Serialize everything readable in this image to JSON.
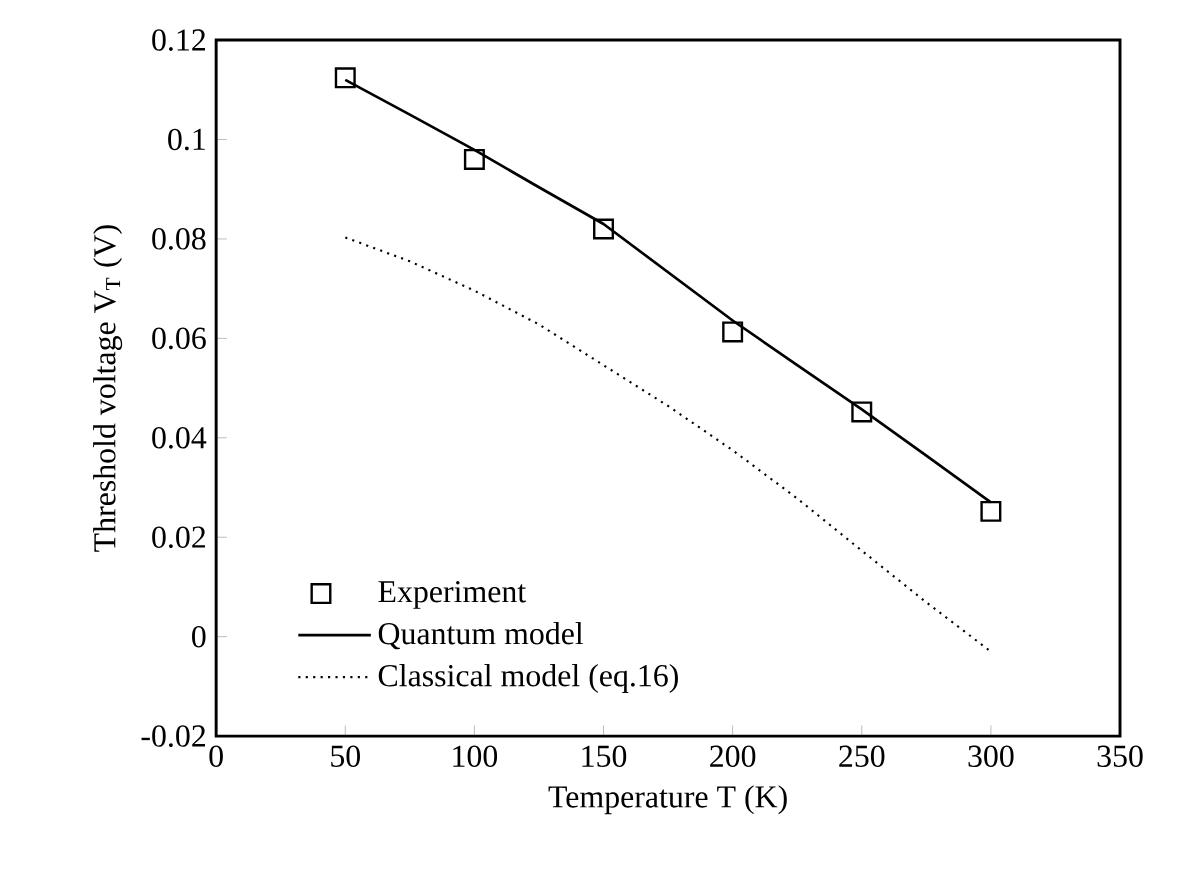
{
  "chart_data": {
    "type": "line",
    "xlabel": "Temperature T (K)",
    "ylabel": "Threshold voltage V$_{T}$ (V)",
    "xlim": [
      0,
      350
    ],
    "xticks": [
      0,
      50,
      100,
      150,
      200,
      250,
      300,
      350
    ],
    "ylim": [
      -0.02,
      0.12
    ],
    "yticks": [
      -0.02,
      0,
      0.02,
      0.04,
      0.06,
      0.08,
      0.1,
      0.12
    ],
    "grid": false,
    "legend": "bottom left",
    "series": [
      {
        "name": "Experiment",
        "type": "scatter",
        "marker": "square",
        "color": "#000000",
        "x": [
          50,
          100,
          150,
          200,
          250,
          300
        ],
        "values": [
          0.1124,
          0.096,
          0.082,
          0.0613,
          0.0452,
          0.0252
        ]
      },
      {
        "name": "Quantum model",
        "line_style": "solid",
        "color": "#000000",
        "x": [
          50,
          75,
          100,
          125,
          150,
          175,
          200,
          225,
          250,
          275,
          300
        ],
        "values": [
          0.112,
          0.105,
          0.0979,
          0.0904,
          0.083,
          0.0733,
          0.0636,
          0.0546,
          0.0457,
          0.0364,
          0.027
        ]
      },
      {
        "name": "Classical model (eq.16)",
        "line_style": "dotted",
        "color": "#000000",
        "x": [
          50,
          75,
          100,
          125,
          150,
          175,
          200,
          225,
          250,
          275,
          300
        ],
        "values": [
          0.0803,
          0.0755,
          0.0696,
          0.0628,
          0.0546,
          0.0464,
          0.0375,
          0.0278,
          0.0173,
          0.0069,
          -0.003
        ]
      }
    ]
  }
}
